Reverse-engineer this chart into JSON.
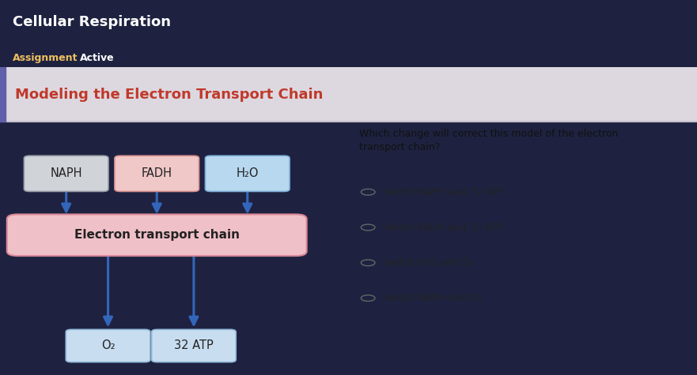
{
  "title_bar_color": "#1e2240",
  "title_text": "Cellular Respiration",
  "subtitle_text": "Assignment",
  "active_text": "Active",
  "title_text_color": "#ffffff",
  "subtitle_color": "#f0c060",
  "active_color": "#ffffff",
  "main_bg_color": "#ede8e8",
  "heading_text": "Modeling the Electron Transport Chain",
  "heading_color": "#c0392b",
  "heading_bg": "#ddd8e0",
  "content_bg": "#e8e2e2",
  "question_text": "Which change will correct this model of the electron\ntransport chain?",
  "options": [
    "Switch NAPH and 32 ATP.",
    "Switch FADH and 32 ATP.",
    "Switch H₂O and O₂.",
    "Switch NAPH and O₂."
  ],
  "box_naph_text": "NAPH",
  "box_naph_bg": "#d0d4d8",
  "box_naph_border": "#999fa8",
  "box_fadh_text": "FADH",
  "box_fadh_bg": "#f0c8c8",
  "box_fadh_border": "#d89090",
  "box_h2o_text": "H₂O",
  "box_h2o_bg": "#b8d8f0",
  "box_h2o_border": "#80b0d8",
  "etc_text": "Electron transport chain",
  "etc_bg": "#f0c0c8",
  "etc_border": "#d88898",
  "box_o2_text": "O₂",
  "box_o2_bg": "#c8ddf0",
  "box_o2_border": "#90b8d8",
  "box_atp_text": "32 ATP",
  "box_atp_bg": "#c8ddf0",
  "box_atp_border": "#90b8d8",
  "arrow_color": "#3366bb",
  "option_text_color": "#222222",
  "circle_color": "#666666",
  "separator_color": "#c8c0d0"
}
